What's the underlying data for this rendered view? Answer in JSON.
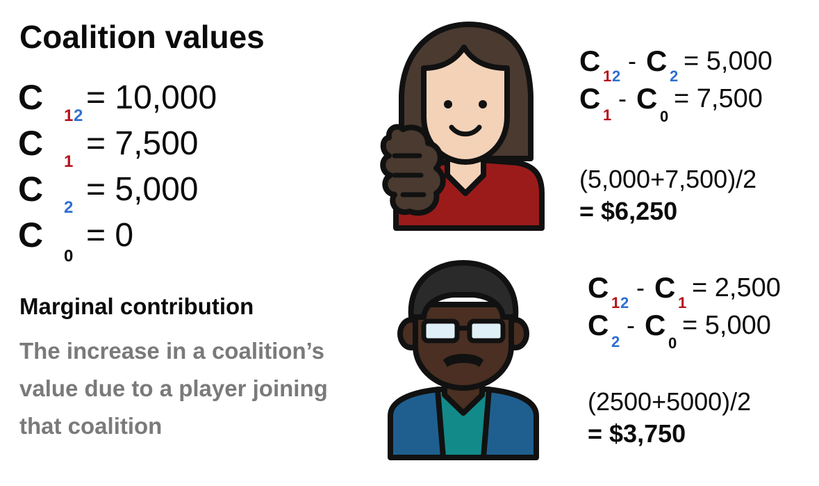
{
  "title": "Coalition values",
  "coalitions": [
    {
      "letter": "C",
      "sub_parts": [
        "1",
        "2"
      ],
      "equals": "= 10,000"
    },
    {
      "letter": "C",
      "sub_parts": [
        "1"
      ],
      "equals": "= 7,500"
    },
    {
      "letter": "C",
      "sub_parts": [
        "2"
      ],
      "equals": "= 5,000"
    },
    {
      "letter": "C",
      "sub_parts": [
        "0"
      ],
      "equals": "= 0"
    }
  ],
  "marginal": {
    "heading": "Marginal contribution",
    "description": "The increase in a coalition’s value due to a player joining that coalition"
  },
  "player1": {
    "eq1": {
      "a_letter": "C",
      "a_sub": [
        "1",
        "2"
      ],
      "minus": "-",
      "b_letter": "C",
      "b_sub": [
        "2"
      ],
      "rhs": "= 5,000"
    },
    "eq2": {
      "a_letter": "C",
      "a_sub": [
        "1"
      ],
      "minus": "-",
      "b_letter": "C",
      "b_sub": [
        "0"
      ],
      "rhs": "= 7,500"
    },
    "calc": "(5,000+7,500)/2",
    "result": "= $6,250"
  },
  "player2": {
    "eq1": {
      "a_letter": "C",
      "a_sub": [
        "1",
        "2"
      ],
      "minus": "-",
      "b_letter": "C",
      "b_sub": [
        "1"
      ],
      "rhs": "= 2,500"
    },
    "eq2": {
      "a_letter": "C",
      "a_sub": [
        "2"
      ],
      "minus": "-",
      "b_letter": "C",
      "b_sub": [
        "0"
      ],
      "rhs": "= 5,000"
    },
    "calc": "(2500+5000)/2",
    "result": "= $3,750"
  },
  "colors": {
    "player1_red": "#b3121e",
    "player2_blue": "#2f6fd1",
    "description_gray": "#7a7a7a"
  },
  "icons": [
    "woman-avatar-icon",
    "man-avatar-icon"
  ]
}
